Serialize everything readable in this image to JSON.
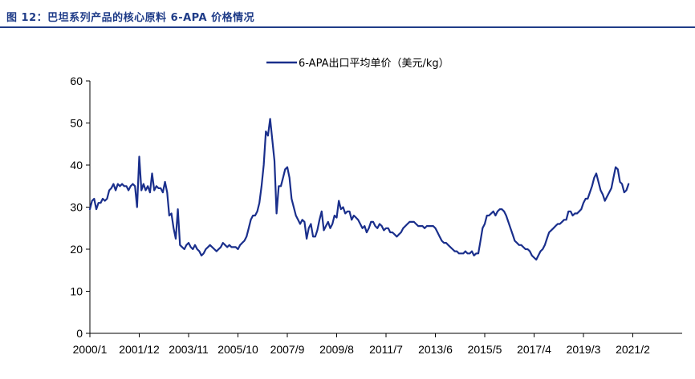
{
  "header": {
    "title": "图 12：巴坦系列产品的核心原料 6-APA 价格情况"
  },
  "colors": {
    "accent": "#1f3c88",
    "series": "#1a2f8c"
  },
  "chart_data": {
    "type": "line",
    "title": "",
    "xlabel": "",
    "ylabel": "",
    "ylim": [
      0,
      60
    ],
    "yticks": [
      0,
      10,
      20,
      30,
      40,
      50,
      60
    ],
    "xlim": [
      0,
      276
    ],
    "xticks": [
      {
        "label": "2000/1",
        "t": 0
      },
      {
        "label": "2001/12",
        "t": 23
      },
      {
        "label": "2003/11",
        "t": 46
      },
      {
        "label": "2005/10",
        "t": 69
      },
      {
        "label": "2007/9",
        "t": 92
      },
      {
        "label": "2009/8",
        "t": 115
      },
      {
        "label": "2011/7",
        "t": 138
      },
      {
        "label": "2013/6",
        "t": 161
      },
      {
        "label": "2015/5",
        "t": 184
      },
      {
        "label": "2017/4",
        "t": 207
      },
      {
        "label": "2019/3",
        "t": 230
      },
      {
        "label": "2021/2",
        "t": 253
      }
    ],
    "legend": {
      "position": "top-center"
    },
    "series": [
      {
        "name": "6-APA出口平均单价（美元/kg）",
        "points": [
          [
            0,
            29.5
          ],
          [
            1,
            31.5
          ],
          [
            2,
            32
          ],
          [
            3,
            29.5
          ],
          [
            4,
            31
          ],
          [
            5,
            31
          ],
          [
            6,
            32
          ],
          [
            7,
            31.5
          ],
          [
            8,
            32
          ],
          [
            9,
            34
          ],
          [
            10,
            34.5
          ],
          [
            11,
            35.5
          ],
          [
            12,
            34
          ],
          [
            13,
            35.5
          ],
          [
            14,
            35
          ],
          [
            15,
            35.5
          ],
          [
            16,
            35
          ],
          [
            17,
            35
          ],
          [
            18,
            34
          ],
          [
            19,
            35
          ],
          [
            20,
            35.5
          ],
          [
            21,
            35
          ],
          [
            22,
            30
          ],
          [
            23,
            42
          ],
          [
            24,
            34
          ],
          [
            25,
            35.5
          ],
          [
            26,
            34
          ],
          [
            27,
            35
          ],
          [
            28,
            33.5
          ],
          [
            29,
            38
          ],
          [
            30,
            34
          ],
          [
            31,
            35
          ],
          [
            32,
            34.5
          ],
          [
            33,
            34.5
          ],
          [
            34,
            33.5
          ],
          [
            35,
            36
          ],
          [
            36,
            33.5
          ],
          [
            37,
            28
          ],
          [
            38,
            28.5
          ],
          [
            39,
            25
          ],
          [
            40,
            22.5
          ],
          [
            41,
            29.5
          ],
          [
            42,
            21
          ],
          [
            43,
            20.5
          ],
          [
            44,
            20
          ],
          [
            45,
            21
          ],
          [
            46,
            21.5
          ],
          [
            47,
            20.5
          ],
          [
            48,
            20
          ],
          [
            49,
            21
          ],
          [
            50,
            20
          ],
          [
            51,
            19.5
          ],
          [
            52,
            18.5
          ],
          [
            53,
            19
          ],
          [
            54,
            20
          ],
          [
            55,
            20.5
          ],
          [
            56,
            21
          ],
          [
            57,
            20.5
          ],
          [
            58,
            20
          ],
          [
            59,
            19.5
          ],
          [
            60,
            20
          ],
          [
            61,
            20.5
          ],
          [
            62,
            21.5
          ],
          [
            63,
            21
          ],
          [
            64,
            20.5
          ],
          [
            65,
            21
          ],
          [
            66,
            20.5
          ],
          [
            67,
            20.5
          ],
          [
            68,
            20.5
          ],
          [
            69,
            20
          ],
          [
            70,
            21
          ],
          [
            71,
            21.5
          ],
          [
            72,
            22
          ],
          [
            73,
            23
          ],
          [
            74,
            25
          ],
          [
            75,
            27
          ],
          [
            76,
            28
          ],
          [
            77,
            28
          ],
          [
            78,
            29
          ],
          [
            79,
            31
          ],
          [
            80,
            35
          ],
          [
            81,
            40
          ],
          [
            82,
            48
          ],
          [
            83,
            47
          ],
          [
            84,
            51
          ],
          [
            85,
            46
          ],
          [
            86,
            41
          ],
          [
            87,
            28.5
          ],
          [
            88,
            35
          ],
          [
            89,
            35
          ],
          [
            90,
            37
          ],
          [
            91,
            39
          ],
          [
            92,
            39.5
          ],
          [
            93,
            37
          ],
          [
            94,
            32
          ],
          [
            95,
            30
          ],
          [
            96,
            28
          ],
          [
            97,
            27
          ],
          [
            98,
            26
          ],
          [
            99,
            27
          ],
          [
            100,
            26.5
          ],
          [
            101,
            22.5
          ],
          [
            102,
            25
          ],
          [
            103,
            26
          ],
          [
            104,
            23
          ],
          [
            105,
            23
          ],
          [
            106,
            24.5
          ],
          [
            107,
            27
          ],
          [
            108,
            29
          ],
          [
            109,
            24.5
          ],
          [
            110,
            25.5
          ],
          [
            111,
            26.5
          ],
          [
            112,
            25
          ],
          [
            113,
            26
          ],
          [
            114,
            28
          ],
          [
            115,
            27.5
          ],
          [
            116,
            31.5
          ],
          [
            117,
            29.5
          ],
          [
            118,
            30
          ],
          [
            119,
            28.5
          ],
          [
            120,
            29
          ],
          [
            121,
            29
          ],
          [
            122,
            27
          ],
          [
            123,
            28
          ],
          [
            124,
            27.5
          ],
          [
            125,
            27
          ],
          [
            126,
            26
          ],
          [
            127,
            25
          ],
          [
            128,
            25.5
          ],
          [
            129,
            24
          ],
          [
            130,
            25
          ],
          [
            131,
            26.5
          ],
          [
            132,
            26.5
          ],
          [
            133,
            25.5
          ],
          [
            134,
            25
          ],
          [
            135,
            26
          ],
          [
            136,
            25.5
          ],
          [
            137,
            24.5
          ],
          [
            138,
            25
          ],
          [
            139,
            25
          ],
          [
            140,
            24
          ],
          [
            141,
            24
          ],
          [
            142,
            23.5
          ],
          [
            143,
            23
          ],
          [
            144,
            23.5
          ],
          [
            145,
            24
          ],
          [
            146,
            25
          ],
          [
            147,
            25.5
          ],
          [
            148,
            26
          ],
          [
            149,
            26.5
          ],
          [
            150,
            26.5
          ],
          [
            151,
            26.5
          ],
          [
            152,
            26
          ],
          [
            153,
            25.5
          ],
          [
            154,
            25.5
          ],
          [
            155,
            25.5
          ],
          [
            156,
            25
          ],
          [
            157,
            25.5
          ],
          [
            158,
            25.5
          ],
          [
            159,
            25.5
          ],
          [
            160,
            25.5
          ],
          [
            161,
            25
          ],
          [
            162,
            24
          ],
          [
            163,
            23
          ],
          [
            164,
            22
          ],
          [
            165,
            21.5
          ],
          [
            166,
            21.5
          ],
          [
            167,
            21
          ],
          [
            168,
            20.5
          ],
          [
            169,
            20
          ],
          [
            170,
            19.5
          ],
          [
            171,
            19.5
          ],
          [
            172,
            19
          ],
          [
            173,
            19
          ],
          [
            174,
            19
          ],
          [
            175,
            19.5
          ],
          [
            176,
            19
          ],
          [
            177,
            19
          ],
          [
            178,
            19.5
          ],
          [
            179,
            18.5
          ],
          [
            180,
            19
          ],
          [
            181,
            19
          ],
          [
            182,
            22
          ],
          [
            183,
            25
          ],
          [
            184,
            26
          ],
          [
            185,
            28
          ],
          [
            186,
            28
          ],
          [
            187,
            28.5
          ],
          [
            188,
            29
          ],
          [
            189,
            28
          ],
          [
            190,
            29
          ],
          [
            191,
            29.5
          ],
          [
            192,
            29.5
          ],
          [
            193,
            29
          ],
          [
            194,
            28
          ],
          [
            195,
            26.5
          ],
          [
            196,
            25
          ],
          [
            197,
            23.5
          ],
          [
            198,
            22
          ],
          [
            199,
            21.5
          ],
          [
            200,
            21
          ],
          [
            201,
            21
          ],
          [
            202,
            20.5
          ],
          [
            203,
            20
          ],
          [
            204,
            20
          ],
          [
            205,
            19.5
          ],
          [
            206,
            18.5
          ],
          [
            207,
            18
          ],
          [
            208,
            17.5
          ],
          [
            209,
            18.5
          ],
          [
            210,
            19.5
          ],
          [
            211,
            20
          ],
          [
            212,
            21
          ],
          [
            213,
            22.5
          ],
          [
            214,
            24
          ],
          [
            215,
            24.5
          ],
          [
            216,
            25
          ],
          [
            217,
            25.5
          ],
          [
            218,
            26
          ],
          [
            219,
            26
          ],
          [
            220,
            26.5
          ],
          [
            221,
            27
          ],
          [
            222,
            27
          ],
          [
            223,
            29
          ],
          [
            224,
            29
          ],
          [
            225,
            28
          ],
          [
            226,
            28.5
          ],
          [
            227,
            28.5
          ],
          [
            228,
            29
          ],
          [
            229,
            29.5
          ],
          [
            230,
            31
          ],
          [
            231,
            32
          ],
          [
            232,
            32
          ],
          [
            233,
            33.5
          ],
          [
            234,
            35
          ],
          [
            235,
            37
          ],
          [
            236,
            38
          ],
          [
            237,
            36
          ],
          [
            238,
            34
          ],
          [
            239,
            33
          ],
          [
            240,
            31.5
          ],
          [
            241,
            32.5
          ],
          [
            242,
            33.5
          ],
          [
            243,
            34.5
          ],
          [
            244,
            37
          ],
          [
            245,
            39.5
          ],
          [
            246,
            39
          ],
          [
            247,
            36
          ],
          [
            248,
            35.5
          ],
          [
            249,
            33.5
          ],
          [
            250,
            34
          ],
          [
            251,
            35.5
          ]
        ]
      }
    ]
  }
}
